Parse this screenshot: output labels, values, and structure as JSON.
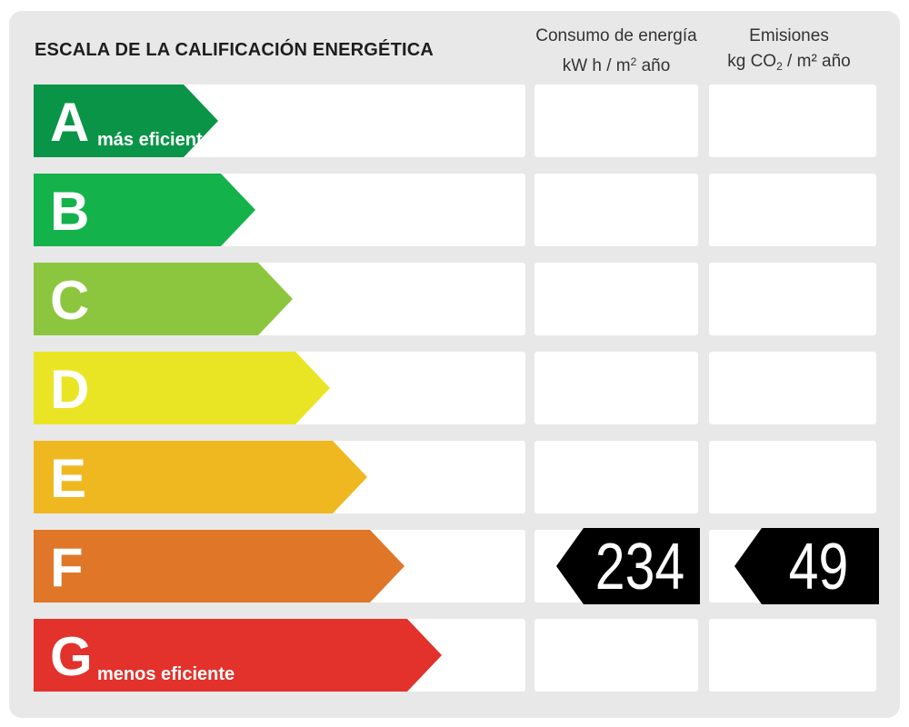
{
  "chart_data": {
    "type": "bar",
    "title": "ESCALA DE LA CALIFICACIÓN ENERGÉTICA",
    "categories": [
      "A",
      "B",
      "C",
      "D",
      "E",
      "F",
      "G"
    ],
    "bands": [
      {
        "letter": "A",
        "sublabel": "más eficiente",
        "color": "#0a9447"
      },
      {
        "letter": "B",
        "sublabel": "",
        "color": "#13b24b"
      },
      {
        "letter": "C",
        "sublabel": "",
        "color": "#8cc63e"
      },
      {
        "letter": "D",
        "sublabel": "",
        "color": "#eae524"
      },
      {
        "letter": "E",
        "sublabel": "",
        "color": "#efb820"
      },
      {
        "letter": "F",
        "sublabel": "",
        "color": "#e07628"
      },
      {
        "letter": "G",
        "sublabel": "menos eficiente",
        "color": "#e3312b"
      }
    ],
    "columns": [
      {
        "line1": "Consumo de energía",
        "line2_pre": "kW h  / m",
        "line2_sup": "2",
        "line2_sub": "",
        "line2_post": " año"
      },
      {
        "line1": "Emisiones",
        "line2_pre": "kg CO",
        "line2_sup": "",
        "line2_sub": "2",
        "line2_post": "  / m² año"
      }
    ],
    "rating": {
      "band": "F",
      "consumption": "234",
      "emissions": "49"
    }
  }
}
